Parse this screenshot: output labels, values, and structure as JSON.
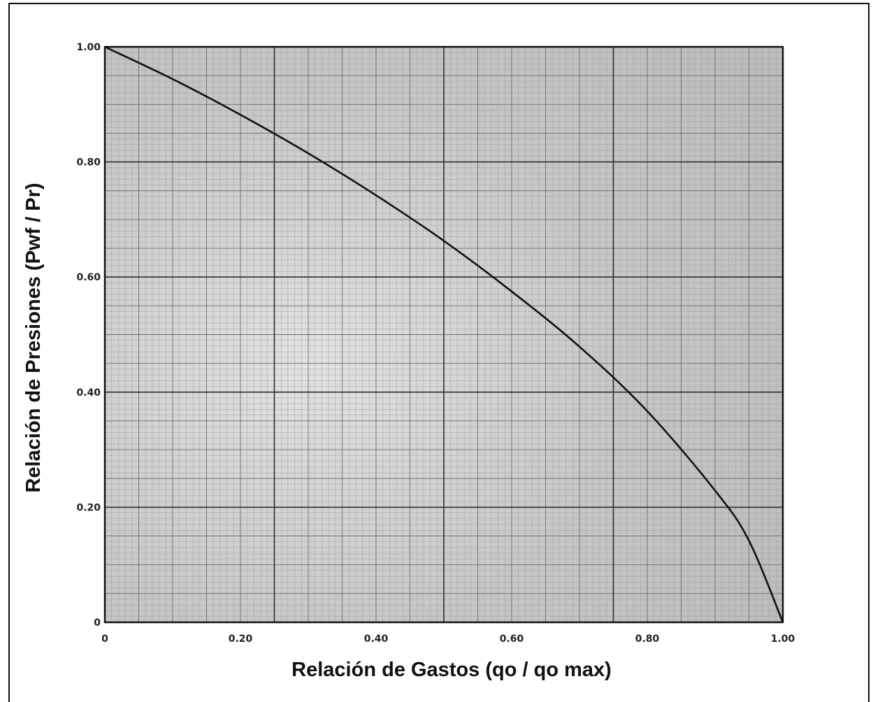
{
  "chart_data": {
    "type": "line",
    "title": "",
    "xlabel": "Relación de Gastos (qo / qo max)",
    "ylabel": "Relación de Presiones (Pwf / Pr)",
    "xlim": [
      0,
      1
    ],
    "ylim": [
      0,
      1
    ],
    "grid": true,
    "legend": "none",
    "x_ticks": [
      "0",
      "0.20",
      "0.40",
      "0.60",
      "0.80",
      "1.00"
    ],
    "y_ticks": [
      "0",
      "0.20",
      "0.40",
      "0.60",
      "0.80",
      "1.00"
    ],
    "series": [
      {
        "x": [
          0,
          0.1,
          0.2,
          0.3,
          0.4,
          0.5,
          0.6,
          0.7,
          0.8,
          0.9,
          0.95,
          1.0
        ],
        "y": [
          1.0,
          0.944,
          0.882,
          0.815,
          0.742,
          0.663,
          0.575,
          0.479,
          0.367,
          0.229,
          0.142,
          0.0
        ]
      }
    ],
    "colors": {
      "background": "#c9c9c9",
      "grid_minor": "#8a8a8a",
      "grid_major": "#3a3a3a",
      "curve": "#111111"
    }
  }
}
